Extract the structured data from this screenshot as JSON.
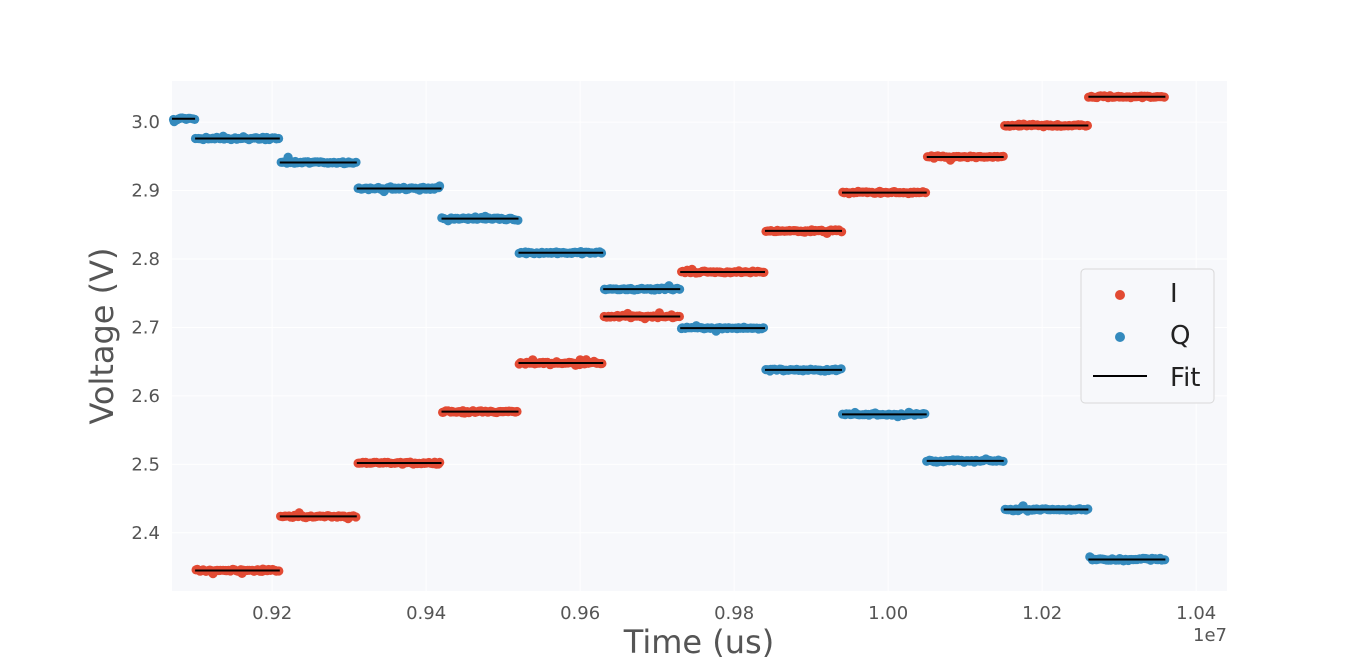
{
  "chart_data": {
    "type": "scatter",
    "title": "",
    "xlabel": "Time (us)",
    "ylabel": "Voltage (V)",
    "x_offset_label": "1e7",
    "x_scale": 10000000,
    "xlim": [
      9070000,
      10440000
    ],
    "ylim": [
      2.315,
      3.06
    ],
    "x_ticks": [
      9200000,
      9400000,
      9600000,
      9800000,
      10000000,
      10200000,
      10400000
    ],
    "x_tick_labels": [
      "0.92",
      "0.94",
      "0.96",
      "0.98",
      "1.00",
      "1.02",
      "1.04"
    ],
    "y_ticks": [
      2.4,
      2.5,
      2.6,
      2.7,
      2.8,
      2.9,
      3.0
    ],
    "y_tick_labels": [
      "2.4",
      "2.5",
      "2.6",
      "2.7",
      "2.8",
      "2.9",
      "3.0"
    ],
    "grid": true,
    "legend_position": "right",
    "colors": {
      "I": "#E24A33",
      "Q": "#348ABD",
      "Fit": "#000000",
      "plot_background": "#F7F8FB",
      "grid": "#FFFFFF"
    },
    "series": [
      {
        "name": "I",
        "kind": "scatter",
        "segments": [
          {
            "x_start": 9100000,
            "x_end": 9210000,
            "y": 2.345
          },
          {
            "x_start": 9210000,
            "x_end": 9310000,
            "y": 2.424
          },
          {
            "x_start": 9310000,
            "x_end": 9420000,
            "y": 2.502
          },
          {
            "x_start": 9420000,
            "x_end": 9520000,
            "y": 2.577
          },
          {
            "x_start": 9520000,
            "x_end": 9630000,
            "y": 2.648
          },
          {
            "x_start": 9630000,
            "x_end": 9730000,
            "y": 2.716
          },
          {
            "x_start": 9730000,
            "x_end": 9840000,
            "y": 2.781
          },
          {
            "x_start": 9840000,
            "x_end": 9940000,
            "y": 2.841
          },
          {
            "x_start": 9940000,
            "x_end": 10050000,
            "y": 2.897
          },
          {
            "x_start": 10050000,
            "x_end": 10150000,
            "y": 2.949
          },
          {
            "x_start": 10150000,
            "x_end": 10260000,
            "y": 2.995
          },
          {
            "x_start": 10260000,
            "x_end": 10360000,
            "y": 3.037
          }
        ]
      },
      {
        "name": "Q",
        "kind": "scatter",
        "segments": [
          {
            "x_start": 9070000,
            "x_end": 9100000,
            "y": 3.005
          },
          {
            "x_start": 9100000,
            "x_end": 9210000,
            "y": 2.976
          },
          {
            "x_start": 9210000,
            "x_end": 9310000,
            "y": 2.941
          },
          {
            "x_start": 9310000,
            "x_end": 9420000,
            "y": 2.903
          },
          {
            "x_start": 9420000,
            "x_end": 9520000,
            "y": 2.859
          },
          {
            "x_start": 9520000,
            "x_end": 9630000,
            "y": 2.809
          },
          {
            "x_start": 9630000,
            "x_end": 9730000,
            "y": 2.756
          },
          {
            "x_start": 9730000,
            "x_end": 9840000,
            "y": 2.699
          },
          {
            "x_start": 9840000,
            "x_end": 9940000,
            "y": 2.638
          },
          {
            "x_start": 9940000,
            "x_end": 10050000,
            "y": 2.573
          },
          {
            "x_start": 10050000,
            "x_end": 10150000,
            "y": 2.505
          },
          {
            "x_start": 10150000,
            "x_end": 10260000,
            "y": 2.434
          },
          {
            "x_start": 10260000,
            "x_end": 10360000,
            "y": 2.361
          }
        ]
      },
      {
        "name": "Fit",
        "kind": "line"
      }
    ],
    "legend": [
      {
        "label": "I",
        "marker": "dot",
        "color": "#E24A33"
      },
      {
        "label": "Q",
        "marker": "dot",
        "color": "#348ABD"
      },
      {
        "label": "Fit",
        "marker": "line",
        "color": "#000000"
      }
    ]
  }
}
